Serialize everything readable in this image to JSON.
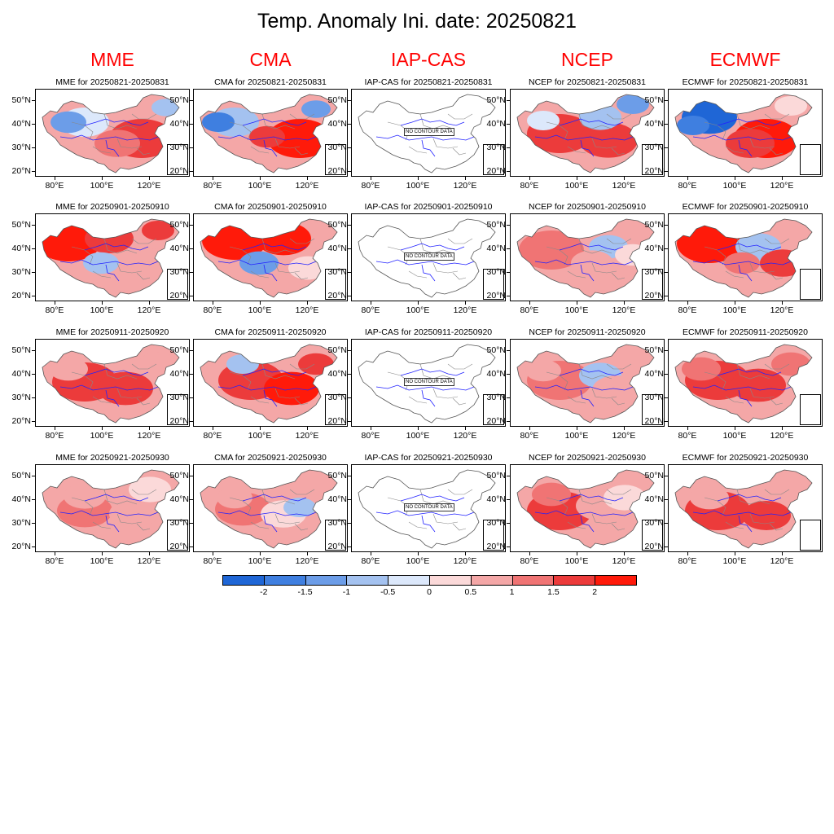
{
  "title": "Temp. Anomaly Ini. date: 20250821",
  "models": [
    "MME",
    "CMA",
    "IAP-CAS",
    "NCEP",
    "ECMWF"
  ],
  "periods": [
    "20250821-20250831",
    "20250901-20250910",
    "20250911-20250920",
    "20250921-20250930"
  ],
  "panel_titles": [
    [
      "MME for 20250821-20250831",
      "CMA for 20250821-20250831",
      "IAP-CAS for 20250821-20250831",
      "NCEP for 20250821-20250831",
      "ECMWF for 20250821-20250831"
    ],
    [
      "MME for 20250901-20250910",
      "CMA for 20250901-20250910",
      "IAP-CAS for 20250901-20250910",
      "NCEP for 20250901-20250910",
      "ECMWF for 20250901-20250910"
    ],
    [
      "MME for 20250911-20250920",
      "CMA for 20250911-20250920",
      "IAP-CAS for 20250911-20250920",
      "NCEP for 20250911-20250920",
      "ECMWF for 20250911-20250920"
    ],
    [
      "MME for 20250921-20250930",
      "CMA for 20250921-20250930",
      "IAP-CAS for 20250921-20250930",
      "NCEP for 20250921-20250930",
      "ECMWF for 20250921-20250930"
    ]
  ],
  "no_data_text": "NO CONTOUR DATA",
  "lat_labels": [
    "50°N",
    "40°N",
    "30°N",
    "20°N"
  ],
  "lon_labels": [
    "80°E",
    "100°E",
    "120°E"
  ],
  "colorbar": {
    "labels": [
      "-2",
      "-1.5",
      "-1",
      "-0.5",
      "0",
      "0.5",
      "1",
      "1.5",
      "2"
    ],
    "colors": [
      "#1f66d6",
      "#3f7fe0",
      "#6c9de8",
      "#a4c2f0",
      "#dce8fb",
      "#fbd9d9",
      "#f4a7a7",
      "#f07474",
      "#ec3b3b",
      "#ff1a0a"
    ]
  },
  "colors": {
    "title_red": "#ff0000",
    "boundary_blue": "#2222ff",
    "province_gray": "#888888"
  }
}
